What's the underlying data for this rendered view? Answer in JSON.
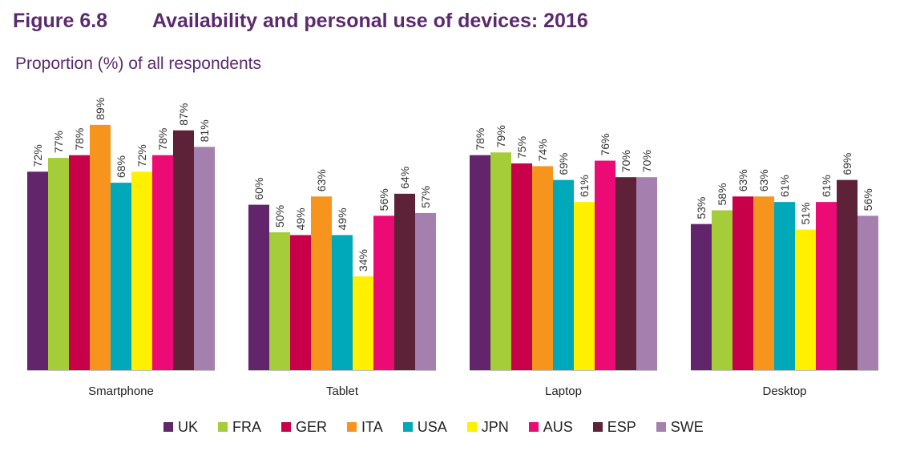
{
  "figure": {
    "number": "Figure 6.8",
    "title": "Availability and personal use of devices: 2016"
  },
  "chart_data": {
    "type": "bar",
    "title": "Availability and personal use of devices: 2016",
    "subtitle": "Proportion (%) of all respondents",
    "categories": [
      "Smartphone",
      "Tablet",
      "Laptop",
      "Desktop"
    ],
    "value_suffix": "%",
    "ylim": [
      0,
      100
    ],
    "grid": false,
    "legend_position": "bottom",
    "series": [
      {
        "name": "UK",
        "color": "#62246a",
        "values": [
          72,
          60,
          78,
          53
        ]
      },
      {
        "name": "FRA",
        "color": "#a5cd39",
        "values": [
          77,
          50,
          79,
          58
        ]
      },
      {
        "name": "GER",
        "color": "#c8004a",
        "values": [
          78,
          49,
          75,
          63
        ]
      },
      {
        "name": "ITA",
        "color": "#f7941d",
        "values": [
          89,
          63,
          74,
          63
        ]
      },
      {
        "name": "USA",
        "color": "#00a9b9",
        "values": [
          68,
          49,
          69,
          61
        ]
      },
      {
        "name": "JPN",
        "color": "#ffef00",
        "values": [
          72,
          34,
          61,
          51
        ]
      },
      {
        "name": "AUS",
        "color": "#ec0a74",
        "values": [
          78,
          56,
          76,
          61
        ]
      },
      {
        "name": "ESP",
        "color": "#5e2238",
        "values": [
          87,
          64,
          70,
          69
        ]
      },
      {
        "name": "SWE",
        "color": "#a57fae",
        "values": [
          81,
          57,
          70,
          56
        ]
      }
    ]
  }
}
